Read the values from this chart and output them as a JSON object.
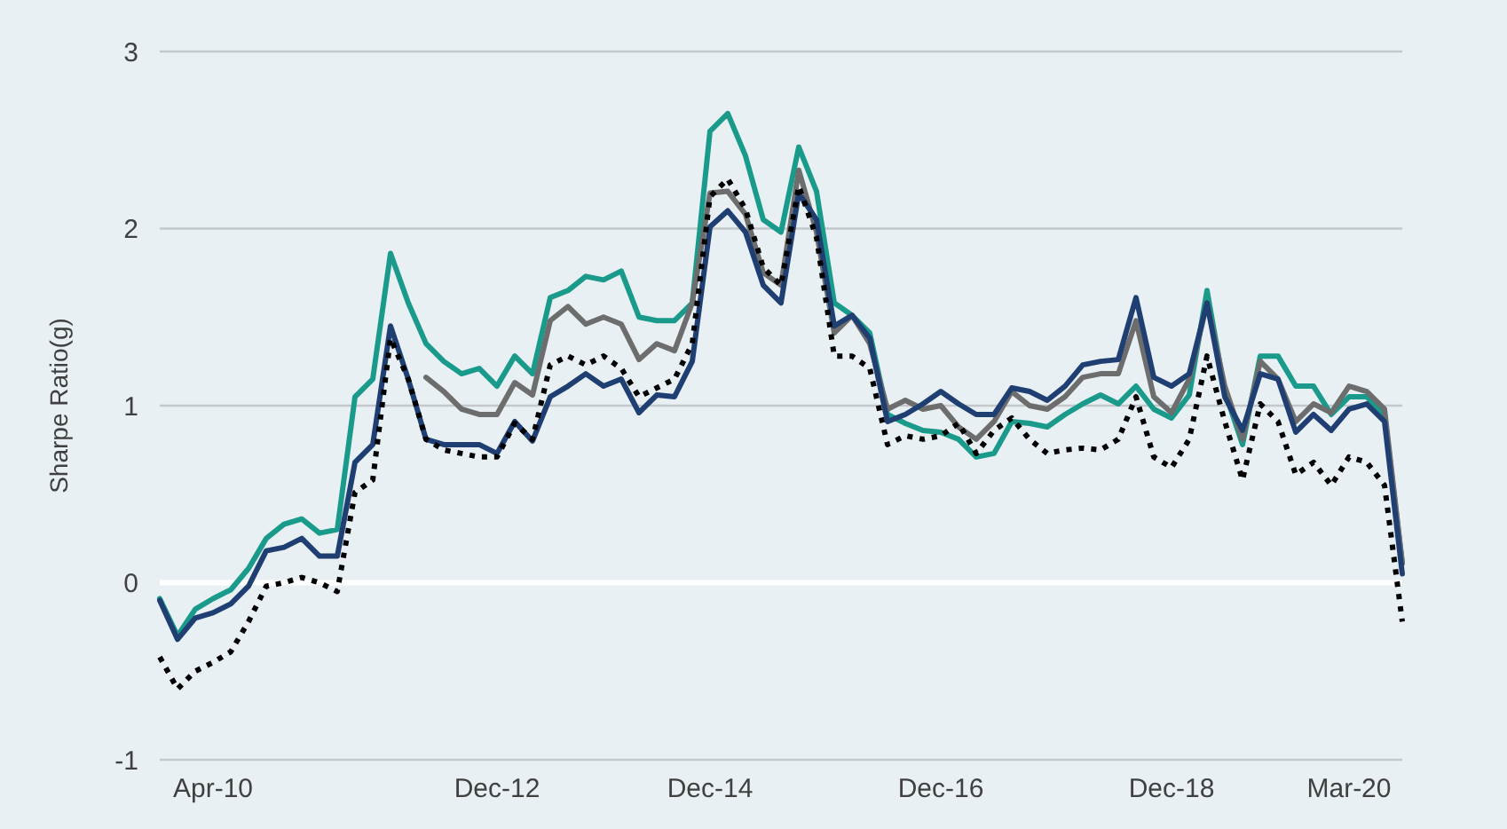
{
  "chart_data": {
    "type": "line",
    "ylabel": "Sharpe Ratio(g)",
    "ylim": [
      -1,
      3
    ],
    "yticks": [
      -1,
      0,
      1,
      2,
      3
    ],
    "grid": "y",
    "marker": "none",
    "categories": [
      null,
      null,
      null,
      "Apr-10",
      null,
      null,
      null,
      null,
      null,
      null,
      null,
      null,
      null,
      null,
      null,
      null,
      null,
      null,
      null,
      "Dec-12",
      null,
      null,
      null,
      null,
      null,
      null,
      null,
      null,
      null,
      null,
      null,
      "Dec-14",
      null,
      null,
      null,
      null,
      null,
      null,
      null,
      null,
      null,
      null,
      null,
      null,
      "Dec-16",
      null,
      null,
      null,
      null,
      null,
      null,
      null,
      null,
      null,
      null,
      null,
      null,
      "Dec-18",
      null,
      null,
      null,
      null,
      null,
      null,
      null,
      null,
      null,
      "Mar-20",
      null,
      null,
      null
    ],
    "series": [
      {
        "color": "#1a9a8a",
        "line_style": "solid",
        "values": [
          -0.09,
          -0.3,
          -0.15,
          -0.09,
          -0.04,
          0.08,
          0.25,
          0.33,
          0.36,
          0.28,
          0.3,
          1.05,
          1.15,
          1.86,
          1.58,
          1.35,
          1.25,
          1.18,
          1.21,
          1.11,
          1.28,
          1.18,
          1.61,
          1.65,
          1.73,
          1.71,
          1.76,
          1.5,
          1.48,
          1.48,
          1.58,
          2.55,
          2.65,
          2.41,
          2.05,
          1.98,
          2.46,
          2.21,
          1.58,
          1.51,
          1.41,
          0.95,
          0.9,
          0.86,
          0.85,
          0.81,
          0.71,
          0.73,
          0.91,
          0.9,
          0.88,
          0.95,
          1.01,
          1.06,
          1.01,
          1.11,
          0.98,
          0.93,
          1.06,
          1.65,
          1.08,
          0.78,
          1.28,
          1.28,
          1.11,
          1.11,
          0.95,
          1.05,
          1.05,
          0.95,
          0.11
        ]
      },
      {
        "color": "#6d6d6d",
        "line_style": "solid",
        "values": [
          null,
          null,
          null,
          null,
          null,
          null,
          null,
          null,
          null,
          null,
          null,
          null,
          null,
          null,
          null,
          1.16,
          1.08,
          0.98,
          0.95,
          0.95,
          1.13,
          1.06,
          1.48,
          1.56,
          1.46,
          1.5,
          1.46,
          1.26,
          1.35,
          1.31,
          1.58,
          2.2,
          2.21,
          2.08,
          1.75,
          1.68,
          2.33,
          1.98,
          1.41,
          1.51,
          1.35,
          0.98,
          1.03,
          0.98,
          1.0,
          0.88,
          0.81,
          0.91,
          1.08,
          1.0,
          0.98,
          1.05,
          1.16,
          1.18,
          1.18,
          1.48,
          1.05,
          0.96,
          1.15,
          1.58,
          1.11,
          0.81,
          1.25,
          1.15,
          0.91,
          1.01,
          0.96,
          1.11,
          1.08,
          0.98,
          0.11
        ]
      },
      {
        "color": "#1f3f73",
        "line_style": "solid",
        "values": [
          -0.1,
          -0.32,
          -0.2,
          -0.17,
          -0.12,
          -0.02,
          0.18,
          0.2,
          0.25,
          0.15,
          0.15,
          0.68,
          0.78,
          1.45,
          1.15,
          0.81,
          0.78,
          0.78,
          0.78,
          0.73,
          0.91,
          0.8,
          1.05,
          1.11,
          1.18,
          1.11,
          1.15,
          0.96,
          1.06,
          1.05,
          1.25,
          2.01,
          2.1,
          1.98,
          1.68,
          1.58,
          2.2,
          2.05,
          1.45,
          1.51,
          1.38,
          0.91,
          0.95,
          1.01,
          1.08,
          1.01,
          0.95,
          0.95,
          1.1,
          1.08,
          1.03,
          1.11,
          1.23,
          1.25,
          1.26,
          1.61,
          1.16,
          1.11,
          1.18,
          1.58,
          1.05,
          0.86,
          1.18,
          1.15,
          0.85,
          0.95,
          0.86,
          0.98,
          1.01,
          0.91,
          0.05
        ]
      },
      {
        "color": "#000000",
        "line_style": "dotted",
        "values": [
          -0.42,
          -0.6,
          -0.5,
          -0.45,
          -0.39,
          -0.22,
          -0.02,
          0.0,
          0.03,
          0.0,
          -0.05,
          0.51,
          0.58,
          1.38,
          1.15,
          0.81,
          0.75,
          0.73,
          0.71,
          0.71,
          0.9,
          0.81,
          1.23,
          1.28,
          1.23,
          1.28,
          1.21,
          1.05,
          1.1,
          1.15,
          1.35,
          2.18,
          2.28,
          2.11,
          1.78,
          1.68,
          2.24,
          1.95,
          1.28,
          1.28,
          1.21,
          0.78,
          0.83,
          0.81,
          0.83,
          0.9,
          0.73,
          0.86,
          0.93,
          0.81,
          0.73,
          0.75,
          0.76,
          0.75,
          0.81,
          1.05,
          0.71,
          0.65,
          0.81,
          1.28,
          0.91,
          0.58,
          1.01,
          0.91,
          0.61,
          0.68,
          0.55,
          0.71,
          0.68,
          0.55,
          -0.22
        ]
      }
    ]
  }
}
